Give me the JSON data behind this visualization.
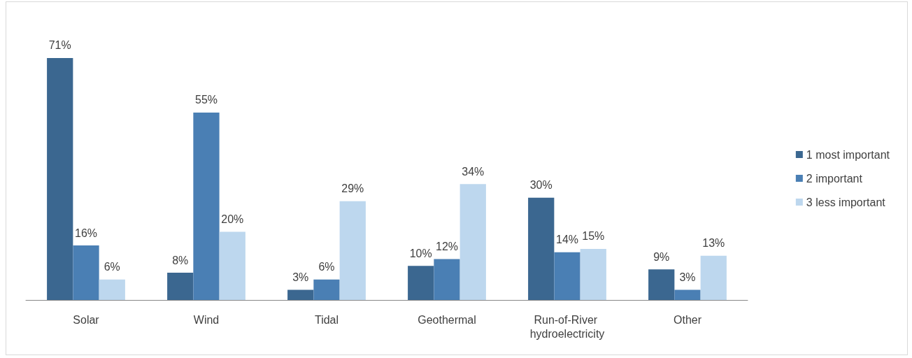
{
  "chart_data": {
    "type": "bar",
    "categories": [
      "Solar",
      "Wind",
      "Tidal",
      "Geothermal",
      "Run-of-River hydroelectricity",
      "Other"
    ],
    "series": [
      {
        "name": "1 most important",
        "color": "#3b6790",
        "values": [
          71,
          8,
          3,
          10,
          30,
          9
        ],
        "value_labels": [
          "71%",
          "8%",
          "3%",
          "10%",
          "30%",
          "9%"
        ]
      },
      {
        "name": "2 important",
        "color": "#4a7fb4",
        "values": [
          16,
          55,
          6,
          12,
          14,
          3
        ],
        "value_labels": [
          "16%",
          "55%",
          "6%",
          "12%",
          "14%",
          "3%"
        ]
      },
      {
        "name": "3 less important",
        "color": "#bdd7ee",
        "values": [
          6,
          20,
          29,
          34,
          15,
          13
        ],
        "value_labels": [
          "6%",
          "20%",
          "29%",
          "34%",
          "15%",
          "13%"
        ]
      }
    ],
    "grid": false,
    "legend": "right"
  }
}
